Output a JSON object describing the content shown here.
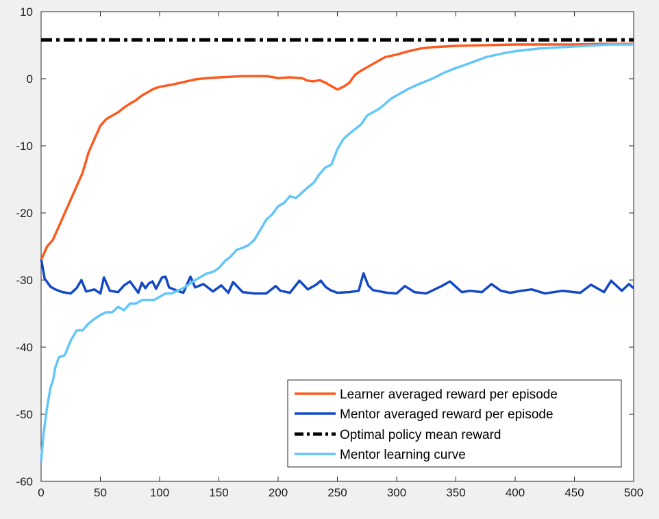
{
  "chart_data": {
    "type": "line",
    "title": "",
    "xlabel": "",
    "ylabel": "",
    "xlim": [
      0,
      500
    ],
    "ylim": [
      -60,
      10
    ],
    "xticks": [
      0,
      50,
      100,
      150,
      200,
      250,
      300,
      350,
      400,
      450,
      500
    ],
    "yticks": [
      -60,
      -50,
      -40,
      -30,
      -20,
      -10,
      0,
      10
    ],
    "grid": false,
    "legend_position": "bottom-right",
    "series": [
      {
        "name": "Learner averaged reward per episode",
        "color": "#fc5a1e",
        "style": "solid",
        "x": [
          0,
          5,
          10,
          15,
          20,
          25,
          30,
          35,
          40,
          45,
          50,
          55,
          60,
          65,
          70,
          75,
          80,
          85,
          90,
          95,
          100,
          110,
          120,
          130,
          140,
          150,
          160,
          170,
          180,
          190,
          200,
          210,
          220,
          225,
          230,
          235,
          240,
          245,
          250,
          255,
          260,
          265,
          270,
          280,
          290,
          300,
          310,
          320,
          330,
          340,
          350,
          375,
          400,
          425,
          450,
          475,
          500
        ],
        "y": [
          -27,
          -25,
          -24,
          -22,
          -20,
          -18,
          -16,
          -14,
          -11,
          -9,
          -7,
          -6,
          -5.5,
          -5,
          -4.3,
          -3.7,
          -3.2,
          -2.5,
          -2,
          -1.5,
          -1.2,
          -0.9,
          -0.5,
          -0.1,
          0.1,
          0.2,
          0.3,
          0.4,
          0.4,
          0.4,
          0.1,
          0.2,
          0.1,
          -0.3,
          -0.4,
          -0.2,
          -0.6,
          -1.1,
          -1.6,
          -1.2,
          -0.6,
          0.6,
          1.2,
          2.2,
          3.2,
          3.6,
          4.1,
          4.5,
          4.7,
          4.8,
          4.9,
          5.0,
          5.1,
          5.1,
          5.1,
          5.2,
          5.2
        ]
      },
      {
        "name": "Mentor averaged reward per episode",
        "color": "#1248c6",
        "style": "solid",
        "x": [
          0,
          3,
          8,
          12,
          18,
          25,
          30,
          34,
          38,
          45,
          50,
          53,
          58,
          65,
          70,
          75,
          82,
          85,
          88,
          91,
          94,
          97,
          102,
          105,
          108,
          115,
          120,
          126,
          130,
          137,
          145,
          152,
          158,
          162,
          170,
          180,
          190,
          198,
          202,
          210,
          218,
          225,
          232,
          236,
          240,
          244,
          250,
          260,
          268,
          272,
          276,
          280,
          292,
          300,
          307,
          315,
          325,
          338,
          345,
          355,
          362,
          372,
          380,
          388,
          396,
          405,
          414,
          425,
          440,
          455,
          464,
          475,
          481,
          490,
          496,
          500
        ],
        "y": [
          -26.8,
          -29.8,
          -31,
          -31.4,
          -31.8,
          -32,
          -31.2,
          -30.0,
          -31.7,
          -31.4,
          -32,
          -29.6,
          -31.6,
          -31.8,
          -30.8,
          -30.2,
          -31.9,
          -30.4,
          -31.2,
          -30.5,
          -30.2,
          -31.3,
          -29.6,
          -29.5,
          -31.1,
          -31.6,
          -31.9,
          -29.5,
          -31.1,
          -30.6,
          -31.7,
          -30.8,
          -31.9,
          -30.3,
          -31.8,
          -32,
          -32,
          -30.9,
          -31.6,
          -31.9,
          -30.1,
          -31.4,
          -30.7,
          -30.1,
          -31.0,
          -31.5,
          -31.9,
          -31.8,
          -31.6,
          -29.0,
          -30.8,
          -31.5,
          -31.9,
          -32,
          -30.9,
          -31.8,
          -32,
          -30.9,
          -30.2,
          -31.8,
          -31.6,
          -31.8,
          -30.6,
          -31.6,
          -31.9,
          -31.6,
          -31.4,
          -32,
          -31.6,
          -31.9,
          -30.7,
          -31.8,
          -30.1,
          -31.6,
          -30.6,
          -31.2
        ]
      },
      {
        "name": "Optimal policy mean reward",
        "color": "#000000",
        "style": "dash-dot",
        "x": [
          0,
          500
        ],
        "y": [
          5.8,
          5.8
        ]
      },
      {
        "name": "Mentor learning curve",
        "color": "#63c6fb",
        "style": "solid",
        "x": [
          0,
          2,
          5,
          8,
          10,
          12,
          15,
          20,
          25,
          30,
          35,
          40,
          45,
          50,
          55,
          60,
          65,
          70,
          75,
          80,
          85,
          90,
          95,
          100,
          105,
          110,
          115,
          120,
          125,
          130,
          135,
          140,
          145,
          150,
          155,
          160,
          165,
          170,
          175,
          180,
          185,
          190,
          195,
          200,
          205,
          210,
          215,
          220,
          225,
          230,
          235,
          240,
          245,
          250,
          255,
          260,
          265,
          270,
          275,
          280,
          285,
          290,
          295,
          300,
          310,
          320,
          330,
          340,
          350,
          360,
          375,
          390,
          400,
          420,
          440,
          460,
          480,
          500
        ],
        "y": [
          -57,
          -53,
          -49,
          -46,
          -45,
          -43,
          -41.5,
          -41.2,
          -39,
          -37.5,
          -37.5,
          -36.5,
          -35.8,
          -35.2,
          -34.8,
          -34.8,
          -34.0,
          -34.5,
          -33.5,
          -33.5,
          -33,
          -33,
          -33,
          -32.5,
          -32,
          -32,
          -31.6,
          -31.2,
          -30.6,
          -30,
          -29.5,
          -29,
          -28.8,
          -28.2,
          -27.2,
          -26.5,
          -25.5,
          -25.2,
          -24.8,
          -24.0,
          -22.5,
          -21,
          -20.2,
          -19,
          -18.5,
          -17.5,
          -17.8,
          -17,
          -16.2,
          -15.5,
          -14.2,
          -13.2,
          -12.8,
          -10.5,
          -9.0,
          -8.2,
          -7.5,
          -6.8,
          -5.5,
          -5.0,
          -4.5,
          -3.8,
          -3.0,
          -2.5,
          -1.5,
          -0.7,
          0.0,
          0.9,
          1.6,
          2.2,
          3.2,
          3.8,
          4.1,
          4.5,
          4.7,
          4.9,
          5.1,
          5.1
        ]
      }
    ]
  }
}
